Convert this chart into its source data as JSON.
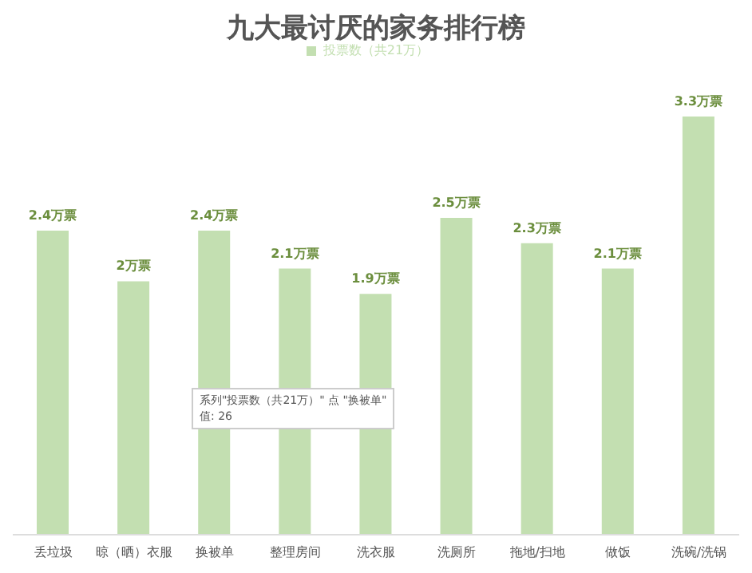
{
  "chart_data": {
    "type": "bar",
    "title": "九大最讨厌的家务排行榜",
    "categories": [
      "丢垃圾",
      "晾（晒）衣服",
      "换被单",
      "整理房间",
      "洗衣服",
      "洗厕所",
      "拖地/扫地",
      "做饭",
      "洗碗/洗锅"
    ],
    "series": [
      {
        "name": "投票数（共21万）",
        "color": "#c3dfb1",
        "values": [
          2.4,
          2,
          2.4,
          2.1,
          1.9,
          2.5,
          2.3,
          2.1,
          3.3
        ],
        "value_labels": [
          "2.4万票",
          "2万票",
          "2.4万票",
          "2.1万票",
          "1.9万票",
          "2.5万票",
          "2.3万票",
          "2.1万票",
          "3.3万票"
        ]
      }
    ],
    "legend": "top",
    "grid": false,
    "annotations": [
      "系列\"投票数（共21万）\" 点 \"换被单\"\n值: 26"
    ]
  }
}
